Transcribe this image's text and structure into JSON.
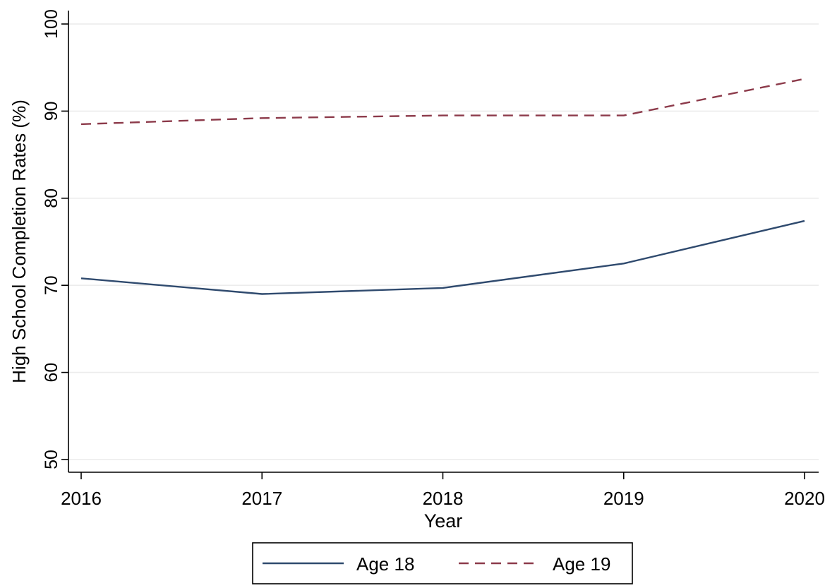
{
  "chart_data": {
    "type": "line",
    "title": "",
    "xlabel": "Year",
    "ylabel": "High School Completion Rates (%)",
    "x": [
      2016,
      2017,
      2018,
      2019,
      2020
    ],
    "xticks": [
      "2016",
      "2017",
      "2018",
      "2019",
      "2020"
    ],
    "yticks": [
      "50",
      "60",
      "70",
      "80",
      "90",
      "100"
    ],
    "ylim": [
      50,
      100
    ],
    "grid": true,
    "legend_position": "bottom",
    "series": [
      {
        "name": "Age 18",
        "values": [
          70.8,
          69.0,
          69.7,
          72.5,
          77.4
        ],
        "color": "#2f4a6e",
        "style": "solid"
      },
      {
        "name": "Age 19",
        "values": [
          88.5,
          89.2,
          89.5,
          89.5,
          93.7
        ],
        "color": "#8c3a4a",
        "style": "dashed"
      }
    ]
  }
}
